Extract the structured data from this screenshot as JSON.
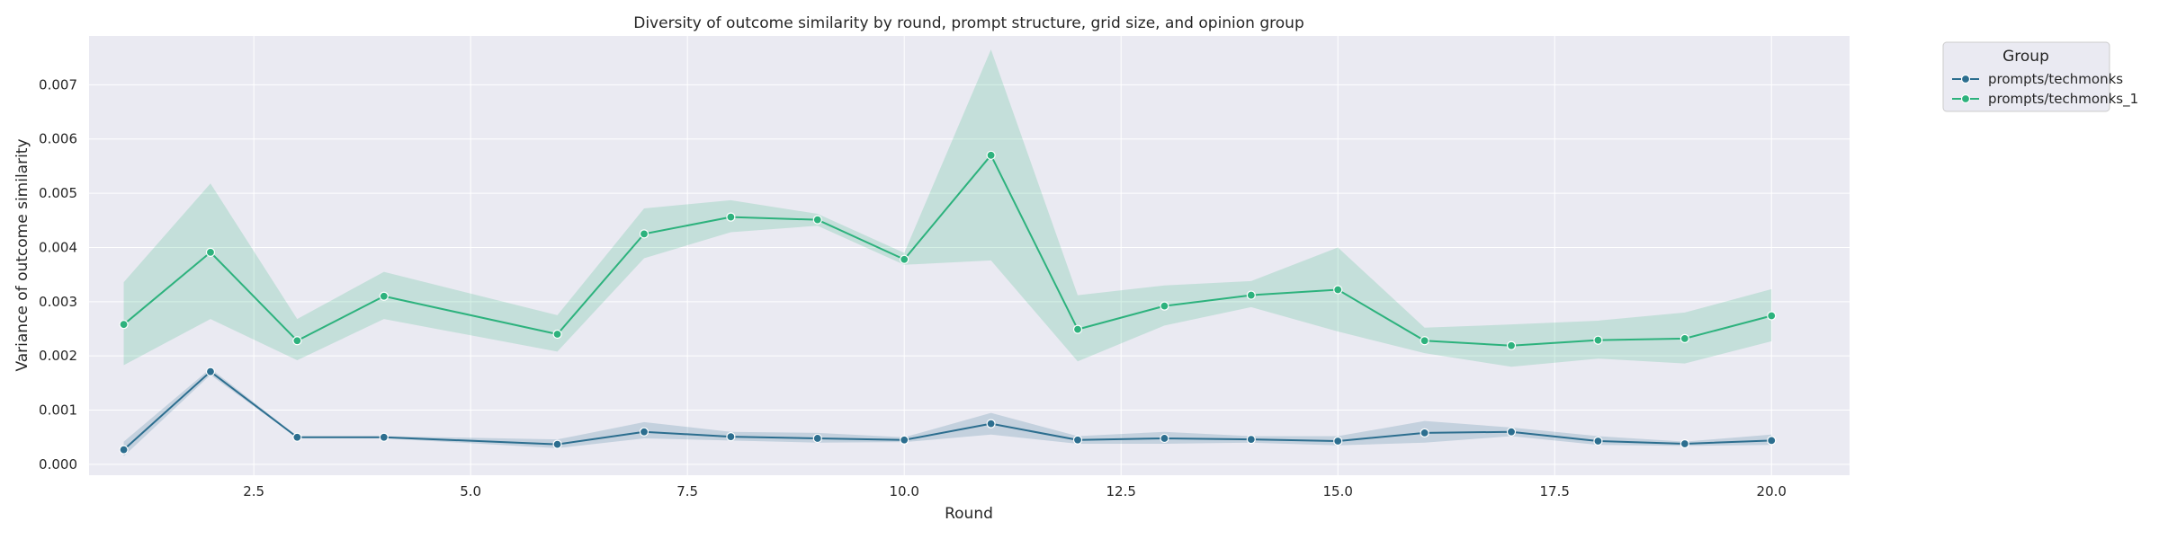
{
  "chart_data": {
    "type": "line",
    "title": "Diversity of outcome similarity by round, prompt structure, grid size, and opinion group",
    "xlabel": "Round",
    "ylabel": "Variance of outcome similarity",
    "xlim": [
      0.6,
      20.9
    ],
    "ylim": [
      -0.0002,
      0.0079
    ],
    "x_ticks": [
      2.5,
      5.0,
      7.5,
      10.0,
      12.5,
      15.0,
      17.5,
      20.0
    ],
    "x_tick_labels": [
      "2.5",
      "5.0",
      "7.5",
      "10.0",
      "12.5",
      "15.0",
      "17.5",
      "20.0"
    ],
    "y_ticks": [
      0.0,
      0.001,
      0.002,
      0.003,
      0.004,
      0.005,
      0.006,
      0.007
    ],
    "y_tick_labels": [
      "0.000",
      "0.001",
      "0.002",
      "0.003",
      "0.004",
      "0.005",
      "0.006",
      "0.007"
    ],
    "grid": true,
    "legend": {
      "title": "Group",
      "placement": "outside-top-right"
    },
    "x": [
      1,
      2,
      3,
      4,
      6,
      7,
      8,
      9,
      10,
      11,
      12,
      13,
      14,
      15,
      16,
      17,
      18,
      19,
      20
    ],
    "series": [
      {
        "name": "prompts/techmonks",
        "color": "#2c6e8f",
        "values": [
          0.00027,
          0.00171,
          0.0005,
          0.0005,
          0.00037,
          0.0006,
          0.00051,
          0.00048,
          0.00045,
          0.00075,
          0.00045,
          0.00048,
          0.00046,
          0.00043,
          0.00058,
          0.0006,
          0.00043,
          0.00038,
          0.00044
        ],
        "ci_low": [
          0.00015,
          0.00165,
          0.00049,
          0.00048,
          0.0003,
          0.00048,
          0.00044,
          0.0004,
          0.00041,
          0.00055,
          0.00038,
          0.00038,
          0.0004,
          0.00035,
          0.0004,
          0.00052,
          0.00036,
          0.00034,
          0.00036
        ],
        "ci_high": [
          0.00042,
          0.00177,
          0.00052,
          0.00052,
          0.00046,
          0.00078,
          0.0006,
          0.00058,
          0.0005,
          0.00095,
          0.00052,
          0.0006,
          0.00052,
          0.00052,
          0.0008,
          0.00068,
          0.00052,
          0.00042,
          0.00055
        ]
      },
      {
        "name": "prompts/techmonks_1",
        "color": "#2db27d",
        "values": [
          0.00258,
          0.00391,
          0.00228,
          0.0031,
          0.0024,
          0.00425,
          0.00456,
          0.00451,
          0.00378,
          0.0057,
          0.00249,
          0.00292,
          0.00312,
          0.00322,
          0.00228,
          0.00219,
          0.00229,
          0.00232,
          0.00274
        ],
        "ci_low": [
          0.00183,
          0.00268,
          0.00192,
          0.00268,
          0.00208,
          0.0038,
          0.00428,
          0.0044,
          0.00368,
          0.00376,
          0.0019,
          0.00256,
          0.0029,
          0.00245,
          0.00205,
          0.0018,
          0.00195,
          0.00186,
          0.00227
        ],
        "ci_high": [
          0.00336,
          0.00518,
          0.00268,
          0.00355,
          0.00275,
          0.00472,
          0.00487,
          0.00462,
          0.0039,
          0.00765,
          0.00312,
          0.0033,
          0.00338,
          0.004,
          0.00252,
          0.00258,
          0.00265,
          0.0028,
          0.00323
        ]
      }
    ]
  }
}
